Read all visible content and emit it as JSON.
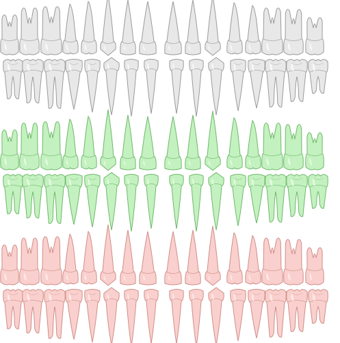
{
  "diagram": {
    "kind": "dental-chart",
    "teeth_per_arch": 16,
    "arches_per_set": [
      "upper",
      "lower"
    ],
    "sets": [
      {
        "variant": "gray",
        "fill": "#e8e8e8",
        "stroke": "#9a9a9a",
        "highlight": "#ffffff"
      },
      {
        "variant": "green",
        "fill": "#c4f1c0",
        "stroke": "#6db86a",
        "highlight": "#effdea"
      },
      {
        "variant": "pink",
        "fill": "#f9d0cd",
        "stroke": "#d08d88",
        "highlight": "#fff1f0"
      }
    ],
    "upper_arch_types": [
      "molar",
      "molar",
      "molar",
      "premolar",
      "premolar",
      "canine",
      "incisor",
      "incisor",
      "incisor",
      "incisor",
      "canine",
      "premolar",
      "premolar",
      "molar",
      "molar",
      "molar"
    ],
    "lower_arch_types": [
      "molar",
      "molar",
      "molar",
      "premolar",
      "premolar",
      "canine",
      "incisor",
      "incisor",
      "incisor",
      "incisor",
      "canine",
      "premolar",
      "premolar",
      "molar",
      "molar",
      "molar"
    ]
  }
}
